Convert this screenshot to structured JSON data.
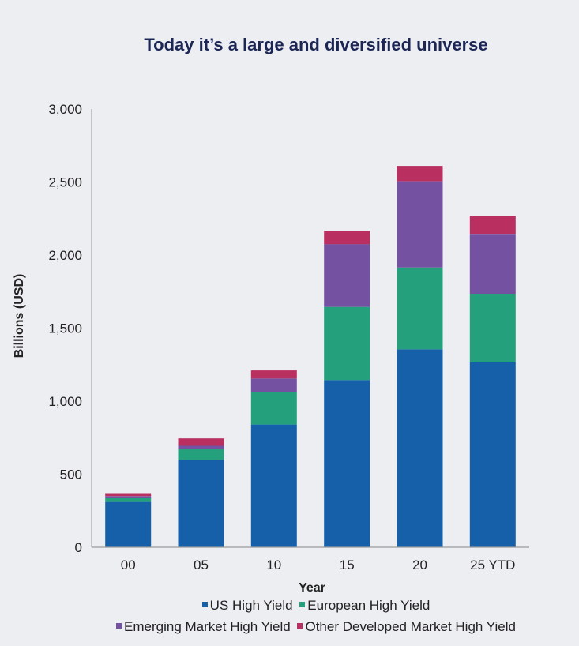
{
  "chart_data": {
    "type": "bar",
    "stacked": true,
    "title": "Today it’s a large and diversified universe",
    "xlabel": "Year",
    "ylabel": "Billions (USD)",
    "ylim": [
      0,
      3000
    ],
    "yticks": [
      "0",
      "500",
      "1,000",
      "1,500",
      "2,000",
      "2,500",
      "3,000"
    ],
    "ytick_values": [
      0,
      500,
      1000,
      1500,
      2000,
      2500,
      3000
    ],
    "categories": [
      "00",
      "05",
      "10",
      "15",
      "20",
      "25 YTD"
    ],
    "series": [
      {
        "name": "US High Yield",
        "color": "#1560a9",
        "values": [
          310,
          600,
          840,
          1145,
          1355,
          1265
        ]
      },
      {
        "name": "European High Yield",
        "color": "#25a07c",
        "values": [
          30,
          75,
          225,
          500,
          560,
          470
        ]
      },
      {
        "name": "Emerging Market High Yield",
        "color": "#7552a1",
        "values": [
          10,
          20,
          90,
          430,
          590,
          410
        ]
      },
      {
        "name": "Other Developed Market High Yield",
        "color": "#b92f60",
        "values": [
          20,
          50,
          55,
          90,
          105,
          125
        ]
      }
    ],
    "grid": false,
    "legend_position": "bottom"
  }
}
